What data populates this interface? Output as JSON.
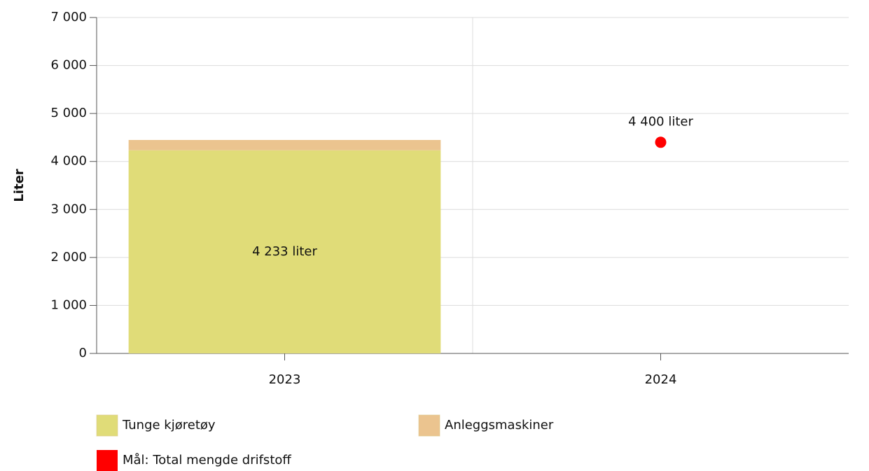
{
  "chart_data": {
    "type": "bar",
    "stacked": true,
    "y_label": "Liter",
    "categories": [
      "2023",
      "2024"
    ],
    "series": [
      {
        "name": "Tunge kjøretøy",
        "color": "#e0dc78",
        "values": [
          4233,
          null
        ],
        "value_labels": [
          "4 233 liter",
          null
        ]
      },
      {
        "name": "Anleggsmaskiner",
        "color": "#ebc48f",
        "values": [
          215,
          null
        ]
      },
      {
        "name": "Mål: Total mengde drifstoff",
        "type": "scatter",
        "color": "#ff0000",
        "values": [
          null,
          4400
        ],
        "value_labels": [
          null,
          "4 400 liter"
        ]
      }
    ],
    "ylim": [
      0,
      7000
    ],
    "yticks": [
      0,
      {
        "value": 1000,
        "label": "1 000"
      },
      {
        "value": 2000,
        "label": "2 000"
      },
      {
        "value": 3000,
        "label": "3 000"
      },
      {
        "value": 4000,
        "label": "4 000"
      },
      {
        "value": 5000,
        "label": "5 000"
      },
      {
        "value": 6000,
        "label": "6 000"
      },
      {
        "value": 7000,
        "label": "7 000"
      }
    ],
    "grid": true
  }
}
